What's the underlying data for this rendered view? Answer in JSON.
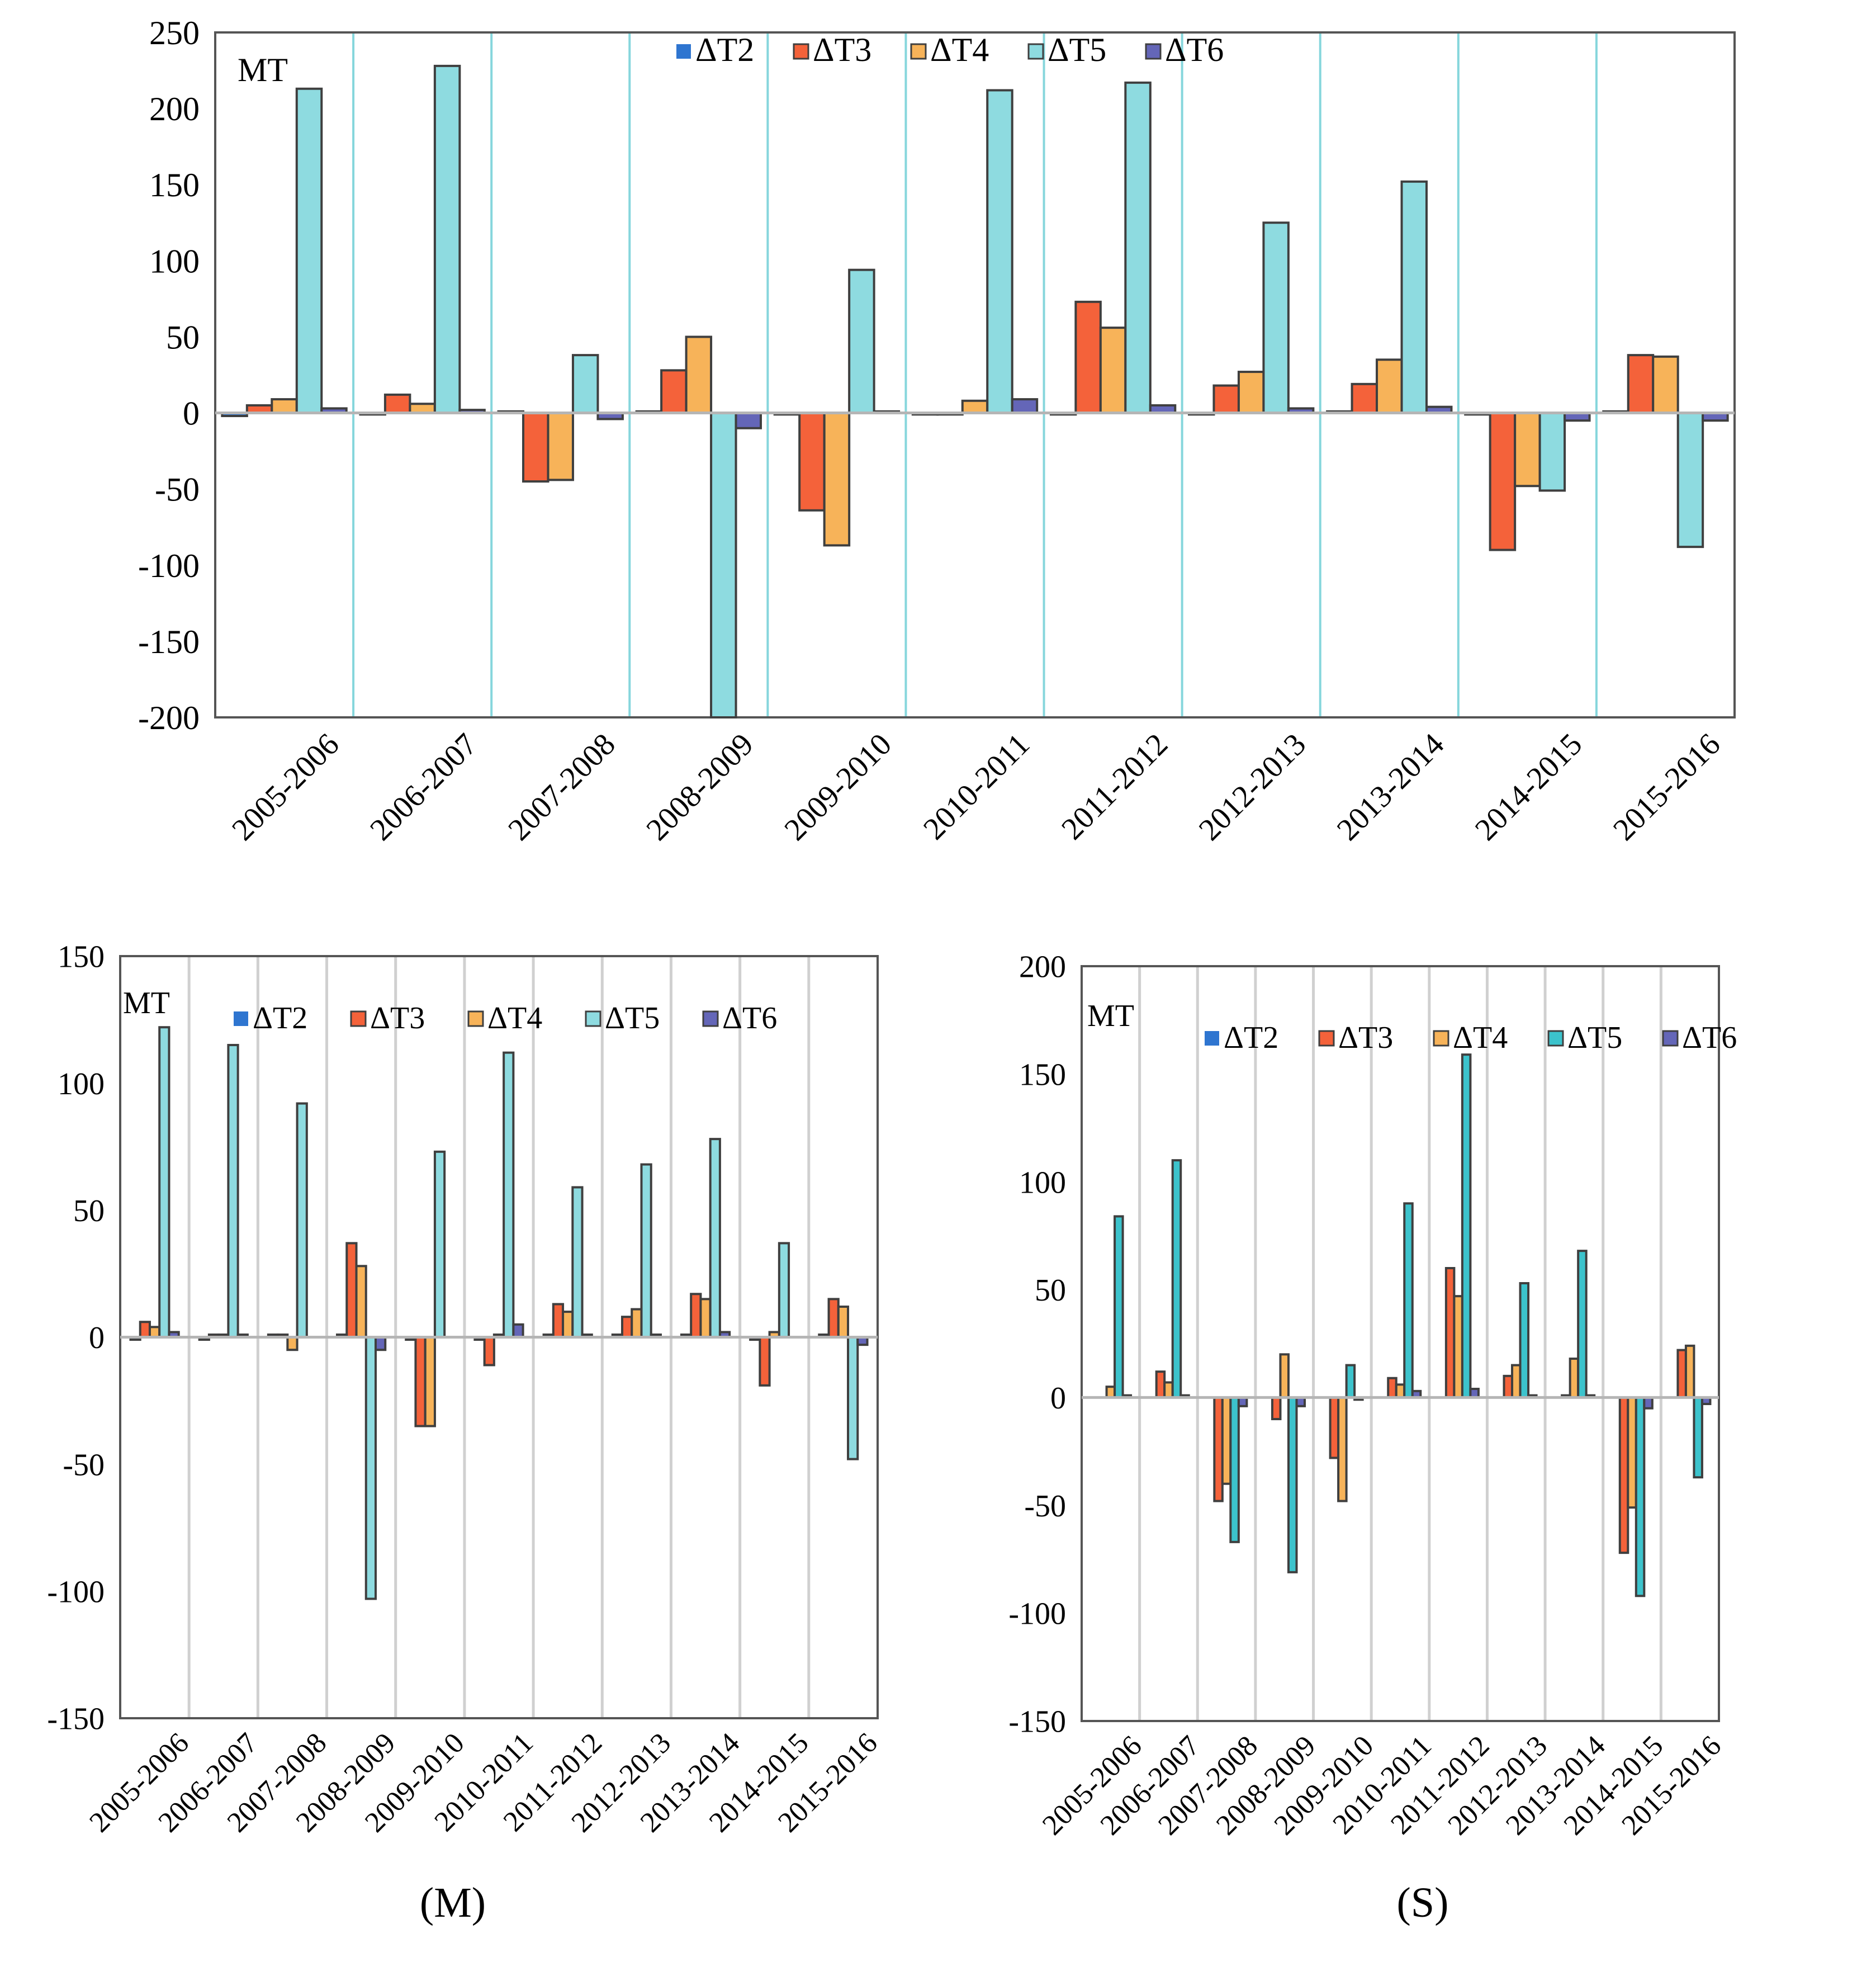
{
  "legend_items": [
    {
      "label": "ΔT2",
      "color": "#2e75d0"
    },
    {
      "label": "ΔT3",
      "color": "#f4623a"
    },
    {
      "label": "ΔT4",
      "color": "#f7b359"
    },
    {
      "label": "ΔT5",
      "color": "#8edbe0"
    },
    {
      "label": "ΔT6",
      "color": "#6466b8"
    }
  ],
  "captions": {
    "m": "(M)",
    "s": "(S)"
  },
  "chart_data": [
    {
      "id": "top",
      "type": "bar",
      "unit_label": "MT",
      "categories": [
        "2005-2006",
        "2006-2007",
        "2007-2008",
        "2008-2009",
        "2009-2010",
        "2010-2011",
        "2011-2012",
        "2012-2013",
        "2013-2014",
        "2014-2015",
        "2015-2016"
      ],
      "ylim": [
        -200,
        250
      ],
      "yticks": [
        250,
        200,
        150,
        100,
        50,
        0,
        -50,
        -100,
        -150,
        -200
      ],
      "series": [
        {
          "name": "ΔT2",
          "values": [
            -2,
            -1,
            1,
            1,
            -1,
            -1,
            -1,
            -1,
            1,
            -1,
            1
          ]
        },
        {
          "name": "ΔT3",
          "values": [
            5,
            12,
            -45,
            28,
            -64,
            -1,
            73,
            18,
            19,
            -90,
            38
          ]
        },
        {
          "name": "ΔT4",
          "values": [
            9,
            6,
            -44,
            50,
            -87,
            8,
            56,
            27,
            35,
            -48,
            37
          ]
        },
        {
          "name": "ΔT5",
          "values": [
            213,
            228,
            38,
            -200,
            94,
            212,
            217,
            125,
            152,
            -51,
            -88
          ]
        },
        {
          "name": "ΔT6",
          "values": [
            3,
            2,
            -4,
            -10,
            1,
            9,
            5,
            3,
            4,
            -5,
            -5
          ]
        }
      ],
      "colors": {
        "ΔT2": "#2e75d0",
        "ΔT3": "#f4623a",
        "ΔT4": "#f7b359",
        "ΔT5": "#8edbe0",
        "ΔT6": "#6466b8"
      },
      "separator_color": "#86d6dc"
    },
    {
      "id": "m",
      "type": "bar",
      "unit_label": "MT",
      "categories": [
        "2005-2006",
        "2006-2007",
        "2007-2008",
        "2008-2009",
        "2009-2010",
        "2010-2011",
        "2011-2012",
        "2012-2013",
        "2013-2014",
        "2014-2015",
        "2015-2016"
      ],
      "ylim": [
        -150,
        150
      ],
      "yticks": [
        150,
        100,
        50,
        0,
        -50,
        -100,
        -150
      ],
      "series": [
        {
          "name": "ΔT2",
          "values": [
            -1,
            -1,
            1,
            1,
            -1,
            -1,
            1,
            1,
            1,
            -1,
            1
          ]
        },
        {
          "name": "ΔT3",
          "values": [
            6,
            1,
            1,
            37,
            -35,
            -11,
            13,
            8,
            17,
            -19,
            15
          ]
        },
        {
          "name": "ΔT4",
          "values": [
            4,
            1,
            -5,
            28,
            -35,
            1,
            10,
            11,
            15,
            2,
            12
          ]
        },
        {
          "name": "ΔT5",
          "values": [
            122,
            115,
            92,
            -103,
            73,
            112,
            59,
            68,
            78,
            37,
            -48
          ]
        },
        {
          "name": "ΔT6",
          "values": [
            2,
            1,
            0,
            -5,
            0,
            5,
            1,
            1,
            2,
            0,
            -3
          ]
        }
      ],
      "colors": {
        "ΔT2": "#2e75d0",
        "ΔT3": "#f4623a",
        "ΔT4": "#f7b359",
        "ΔT5": "#8edbe0",
        "ΔT6": "#6466b8"
      },
      "separator_color": "#d0d0d0"
    },
    {
      "id": "s",
      "type": "bar",
      "unit_label": "MT",
      "categories": [
        "2005-2006",
        "2006-2007",
        "2007-2008",
        "2008-2009",
        "2009-2010",
        "2010-2011",
        "2011-2012",
        "2012-2013",
        "2013-2014",
        "2014-2015",
        "2015-2016"
      ],
      "ylim": [
        -150,
        200
      ],
      "yticks": [
        200,
        150,
        100,
        50,
        0,
        -50,
        -100,
        -150
      ],
      "series": [
        {
          "name": "ΔT2",
          "values": [
            0,
            0,
            0,
            0,
            0,
            0,
            0,
            0,
            0,
            0,
            0
          ]
        },
        {
          "name": "ΔT3",
          "values": [
            0,
            12,
            -48,
            -10,
            -28,
            9,
            60,
            10,
            1,
            -72,
            22
          ]
        },
        {
          "name": "ΔT4",
          "values": [
            5,
            7,
            -40,
            20,
            -48,
            6,
            47,
            15,
            18,
            -51,
            24
          ]
        },
        {
          "name": "ΔT5",
          "values": [
            84,
            110,
            -67,
            -81,
            15,
            90,
            159,
            53,
            68,
            -92,
            -37
          ]
        },
        {
          "name": "ΔT6",
          "values": [
            1,
            1,
            -4,
            -4,
            -1,
            3,
            4,
            1,
            1,
            -5,
            -3
          ]
        }
      ],
      "colors": {
        "ΔT2": "#2e75d0",
        "ΔT3": "#f4623a",
        "ΔT4": "#f7b359",
        "ΔT5": "#3cc3cc",
        "ΔT6": "#6466b8"
      },
      "separator_color": "#d0d0d0"
    }
  ]
}
